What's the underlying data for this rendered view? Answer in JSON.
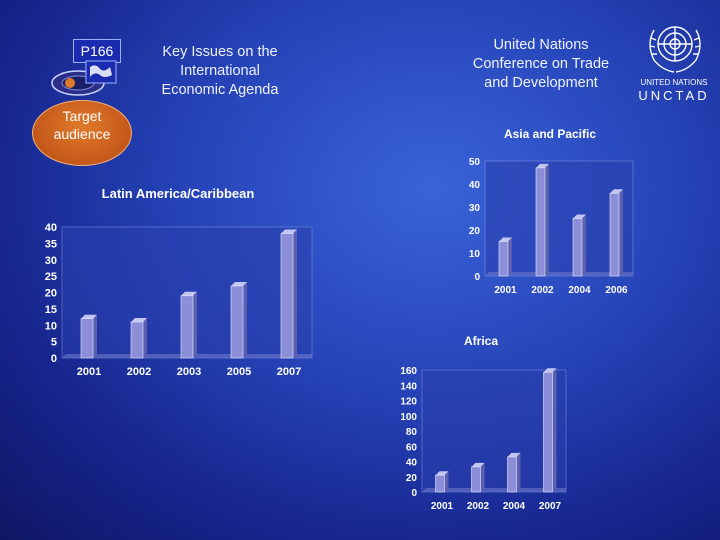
{
  "header": {
    "logo_code": "P166",
    "subtitle_lines": [
      "Key Issues on the",
      "International",
      "Economic Agenda"
    ],
    "org_lines": [
      "United Nations",
      "Conference on Trade",
      "and Development"
    ],
    "badge_lines": [
      "Target",
      "audience"
    ],
    "un_label": "UNITED NATIONS",
    "un_acronym": "UNCTAD"
  },
  "colors": {
    "bar_face": "#8c8fd8",
    "bar_side": "#5b5fb0",
    "plot_bg": "#2a3fae",
    "axis_text": "#ffffff"
  },
  "chart_data": [
    {
      "type": "bar",
      "title": "Latin America/Caribbean",
      "categories": [
        "2001",
        "2002",
        "2003",
        "2005",
        "2007"
      ],
      "values": [
        12,
        11,
        19,
        22,
        38
      ],
      "yticks": [
        0,
        5,
        10,
        15,
        20,
        25,
        30,
        35,
        40
      ],
      "ylim": [
        0,
        40
      ],
      "grid": false
    },
    {
      "type": "bar",
      "title": "Asia and Pacific",
      "categories": [
        "2001",
        "2002",
        "2004",
        "2006"
      ],
      "values": [
        15,
        47,
        25,
        36
      ],
      "yticks": [
        0,
        10,
        20,
        30,
        40,
        50
      ],
      "ylim": [
        0,
        50
      ],
      "grid": false
    },
    {
      "type": "bar",
      "title": "Africa",
      "categories": [
        "2001",
        "2002",
        "2004",
        "2007"
      ],
      "values": [
        22,
        33,
        46,
        157
      ],
      "yticks": [
        0,
        20,
        40,
        60,
        80,
        100,
        120,
        140,
        160
      ],
      "ylim": [
        0,
        160
      ],
      "grid": false
    }
  ]
}
